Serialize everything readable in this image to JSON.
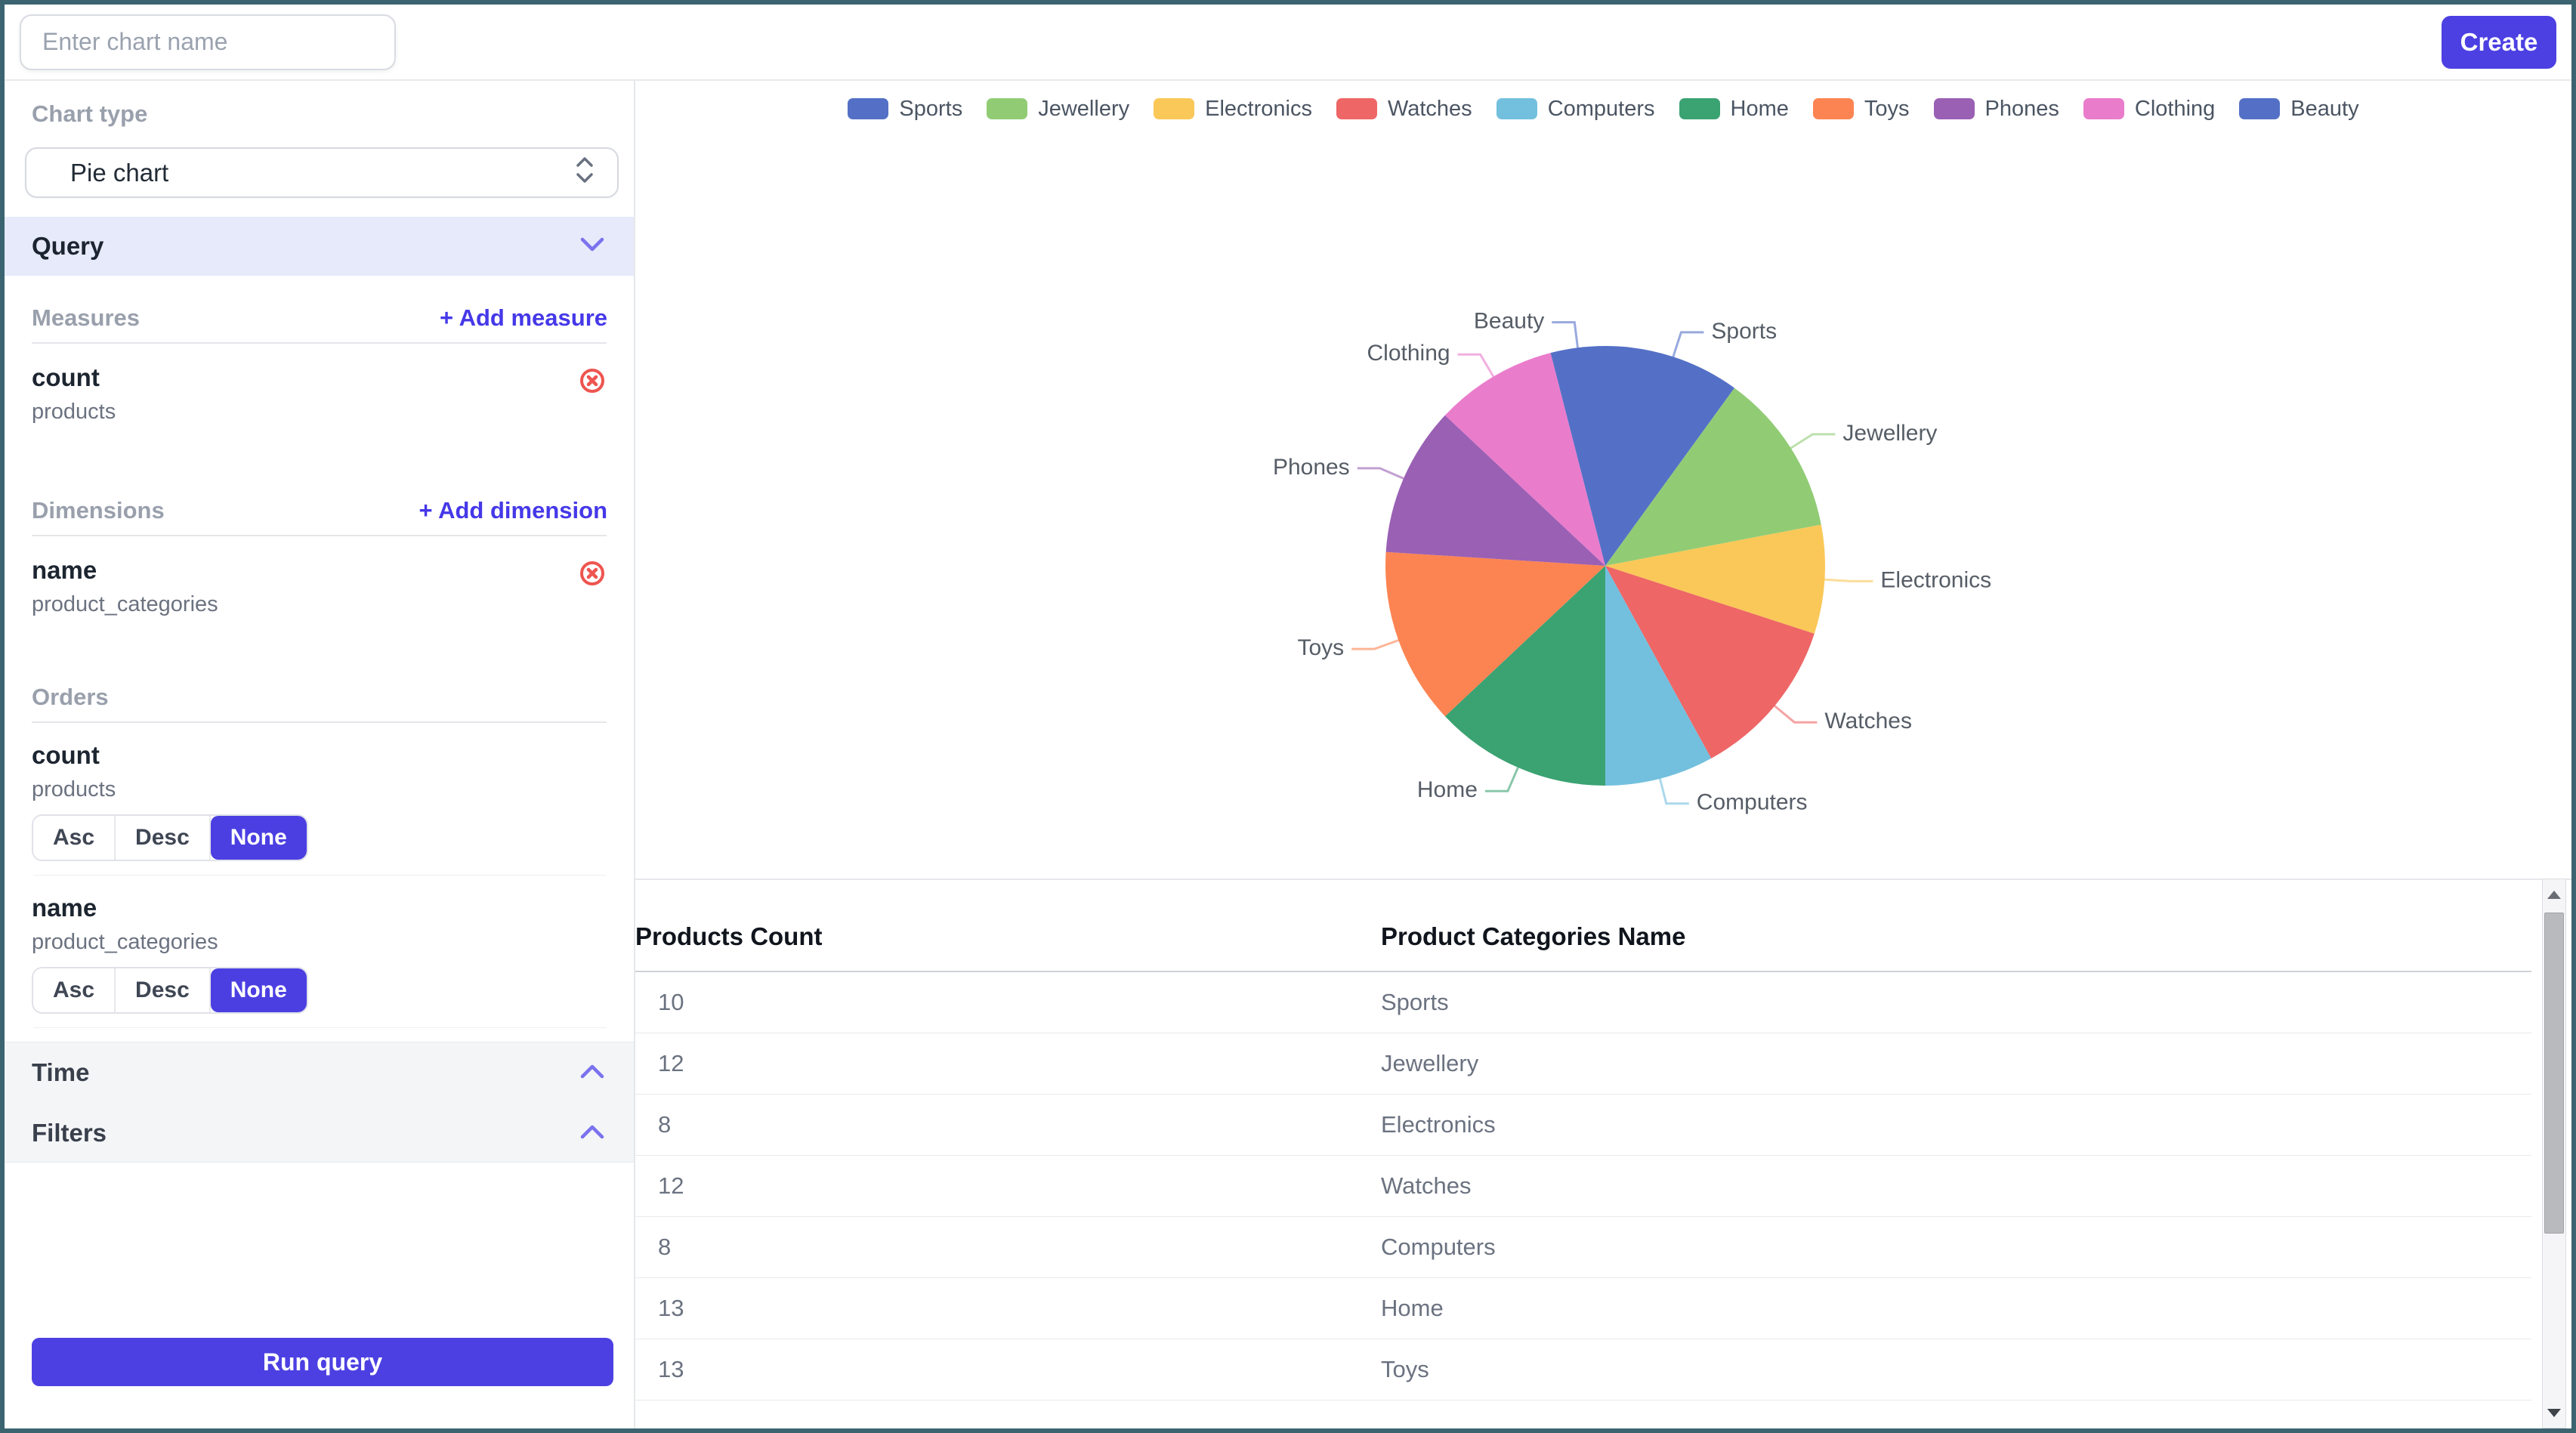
{
  "topbar": {
    "chart_name_placeholder": "Enter chart name",
    "create_label": "Create"
  },
  "sidebar": {
    "chart_type": {
      "label": "Chart type",
      "selected": "Pie chart"
    },
    "query": {
      "label": "Query"
    },
    "measures": {
      "label": "Measures",
      "add_label": "+ Add measure",
      "items": [
        {
          "title": "count",
          "subtitle": "products"
        }
      ]
    },
    "dimensions": {
      "label": "Dimensions",
      "add_label": "+ Add dimension",
      "items": [
        {
          "title": "name",
          "subtitle": "product_categories"
        }
      ]
    },
    "orders": {
      "label": "Orders",
      "options": [
        "Asc",
        "Desc",
        "None"
      ],
      "items": [
        {
          "title": "count",
          "subtitle": "products",
          "selected": "None"
        },
        {
          "title": "name",
          "subtitle": "product_categories",
          "selected": "None"
        }
      ]
    },
    "time": {
      "label": "Time"
    },
    "filters": {
      "label": "Filters"
    },
    "run_query_label": "Run query"
  },
  "chart_data": {
    "type": "pie",
    "categories": [
      "Sports",
      "Jewellery",
      "Electronics",
      "Watches",
      "Computers",
      "Home",
      "Toys",
      "Phones",
      "Clothing",
      "Beauty"
    ],
    "values": [
      10,
      12,
      8,
      12,
      8,
      13,
      13,
      11,
      9,
      4
    ],
    "colors": [
      "#5470c6",
      "#91cc75",
      "#fac858",
      "#ee6666",
      "#73c0de",
      "#3ba272",
      "#fc8452",
      "#9a60b4",
      "#ea7ccc",
      "#5470c6"
    ],
    "legend_position": "top",
    "start_angle_deg": 0,
    "label_color": "#565d66"
  },
  "table": {
    "columns": [
      "Products Count",
      "Product Categories Name"
    ],
    "rows": [
      [
        "10",
        "Sports"
      ],
      [
        "12",
        "Jewellery"
      ],
      [
        "8",
        "Electronics"
      ],
      [
        "12",
        "Watches"
      ],
      [
        "8",
        "Computers"
      ],
      [
        "13",
        "Home"
      ],
      [
        "13",
        "Toys"
      ]
    ]
  },
  "colors": {
    "accent": "#4c40e2",
    "link": "#4538e8",
    "danger": "#ee5550",
    "query_band_bg": "#e7eafa",
    "window_border": "#3b6370"
  }
}
